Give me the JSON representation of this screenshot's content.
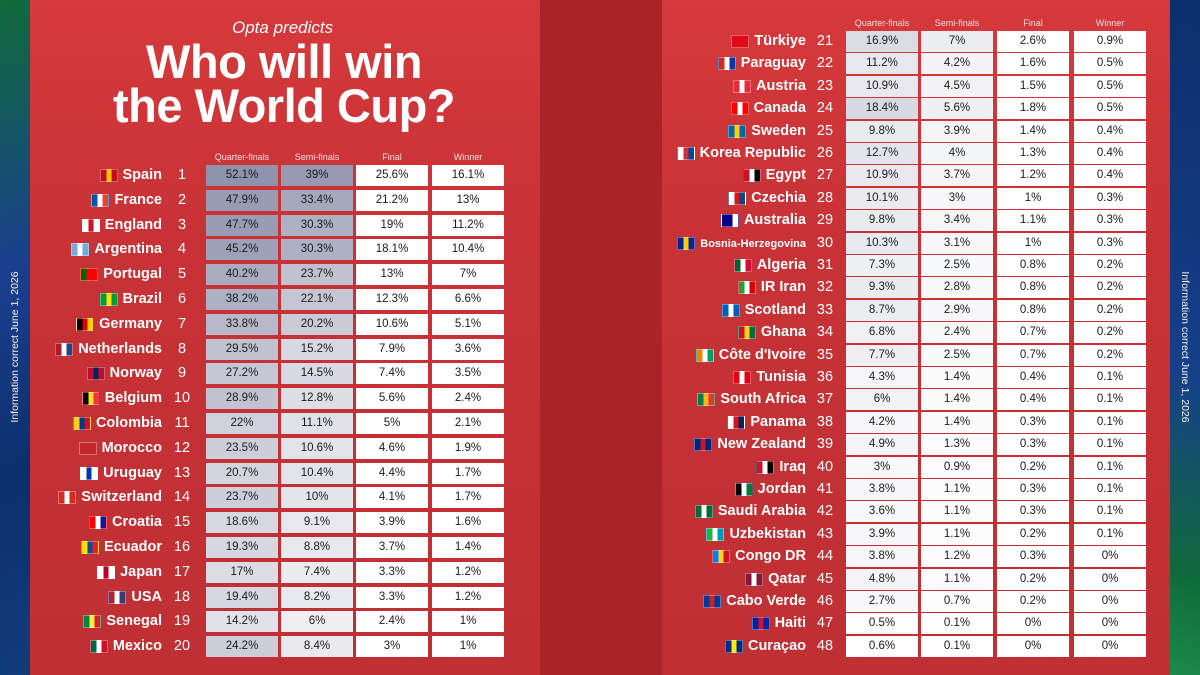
{
  "header": {
    "pre_title": "Opta predicts",
    "title_line1": "Who will win",
    "title_line2": "the World Cup?"
  },
  "side_note": "Information correct June 1, 2026",
  "chart_data": {
    "type": "table",
    "columns": [
      "Quarter-finals",
      "Semi-finals",
      "Final",
      "Winner"
    ],
    "rows": [
      {
        "rank": 1,
        "country": "Spain",
        "values": [
          "52.1%",
          "39%",
          "25.6%",
          "16.1%"
        ]
      },
      {
        "rank": 2,
        "country": "France",
        "values": [
          "47.9%",
          "33.4%",
          "21.2%",
          "13%"
        ]
      },
      {
        "rank": 3,
        "country": "England",
        "values": [
          "47.7%",
          "30.3%",
          "19%",
          "11.2%"
        ]
      },
      {
        "rank": 4,
        "country": "Argentina",
        "values": [
          "45.2%",
          "30.3%",
          "18.1%",
          "10.4%"
        ]
      },
      {
        "rank": 5,
        "country": "Portugal",
        "values": [
          "40.2%",
          "23.7%",
          "13%",
          "7%"
        ]
      },
      {
        "rank": 6,
        "country": "Brazil",
        "values": [
          "38.2%",
          "22.1%",
          "12.3%",
          "6.6%"
        ]
      },
      {
        "rank": 7,
        "country": "Germany",
        "values": [
          "33.8%",
          "20.2%",
          "10.6%",
          "5.1%"
        ]
      },
      {
        "rank": 8,
        "country": "Netherlands",
        "values": [
          "29.5%",
          "15.2%",
          "7.9%",
          "3.6%"
        ]
      },
      {
        "rank": 9,
        "country": "Norway",
        "values": [
          "27.2%",
          "14.5%",
          "7.4%",
          "3.5%"
        ]
      },
      {
        "rank": 10,
        "country": "Belgium",
        "values": [
          "28.9%",
          "12.8%",
          "5.6%",
          "2.4%"
        ]
      },
      {
        "rank": 11,
        "country": "Colombia",
        "values": [
          "22%",
          "11.1%",
          "5%",
          "2.1%"
        ]
      },
      {
        "rank": 12,
        "country": "Morocco",
        "values": [
          "23.5%",
          "10.6%",
          "4.6%",
          "1.9%"
        ]
      },
      {
        "rank": 13,
        "country": "Uruguay",
        "values": [
          "20.7%",
          "10.4%",
          "4.4%",
          "1.7%"
        ]
      },
      {
        "rank": 14,
        "country": "Switzerland",
        "values": [
          "23.7%",
          "10%",
          "4.1%",
          "1.7%"
        ]
      },
      {
        "rank": 15,
        "country": "Croatia",
        "values": [
          "18.6%",
          "9.1%",
          "3.9%",
          "1.6%"
        ]
      },
      {
        "rank": 16,
        "country": "Ecuador",
        "values": [
          "19.3%",
          "8.8%",
          "3.7%",
          "1.4%"
        ]
      },
      {
        "rank": 17,
        "country": "Japan",
        "values": [
          "17%",
          "7.4%",
          "3.3%",
          "1.2%"
        ]
      },
      {
        "rank": 18,
        "country": "USA",
        "values": [
          "19.4%",
          "8.2%",
          "3.3%",
          "1.2%"
        ]
      },
      {
        "rank": 19,
        "country": "Senegal",
        "values": [
          "14.2%",
          "6%",
          "2.4%",
          "1%"
        ]
      },
      {
        "rank": 20,
        "country": "Mexico",
        "values": [
          "24.2%",
          "8.4%",
          "3%",
          "1%"
        ]
      },
      {
        "rank": 21,
        "country": "Türkiye",
        "values": [
          "16.9%",
          "7%",
          "2.6%",
          "0.9%"
        ]
      },
      {
        "rank": 22,
        "country": "Paraguay",
        "values": [
          "11.2%",
          "4.2%",
          "1.6%",
          "0.5%"
        ]
      },
      {
        "rank": 23,
        "country": "Austria",
        "values": [
          "10.9%",
          "4.5%",
          "1.5%",
          "0.5%"
        ]
      },
      {
        "rank": 24,
        "country": "Canada",
        "values": [
          "18.4%",
          "5.6%",
          "1.8%",
          "0.5%"
        ]
      },
      {
        "rank": 25,
        "country": "Sweden",
        "values": [
          "9.8%",
          "3.9%",
          "1.4%",
          "0.4%"
        ]
      },
      {
        "rank": 26,
        "country": "Korea Republic",
        "values": [
          "12.7%",
          "4%",
          "1.3%",
          "0.4%"
        ]
      },
      {
        "rank": 27,
        "country": "Egypt",
        "values": [
          "10.9%",
          "3.7%",
          "1.2%",
          "0.4%"
        ]
      },
      {
        "rank": 28,
        "country": "Czechia",
        "values": [
          "10.1%",
          "3%",
          "1%",
          "0.3%"
        ]
      },
      {
        "rank": 29,
        "country": "Australia",
        "values": [
          "9.8%",
          "3.4%",
          "1.1%",
          "0.3%"
        ]
      },
      {
        "rank": 30,
        "country": "Bosnia-Herzegovina",
        "values": [
          "10.3%",
          "3.1%",
          "1%",
          "0.3%"
        ]
      },
      {
        "rank": 31,
        "country": "Algeria",
        "values": [
          "7.3%",
          "2.5%",
          "0.8%",
          "0.2%"
        ]
      },
      {
        "rank": 32,
        "country": "IR Iran",
        "values": [
          "9.3%",
          "2.8%",
          "0.8%",
          "0.2%"
        ]
      },
      {
        "rank": 33,
        "country": "Scotland",
        "values": [
          "8.7%",
          "2.9%",
          "0.8%",
          "0.2%"
        ]
      },
      {
        "rank": 34,
        "country": "Ghana",
        "values": [
          "6.8%",
          "2.4%",
          "0.7%",
          "0.2%"
        ]
      },
      {
        "rank": 35,
        "country": "Côte d'Ivoire",
        "values": [
          "7.7%",
          "2.5%",
          "0.7%",
          "0.2%"
        ]
      },
      {
        "rank": 36,
        "country": "Tunisia",
        "values": [
          "4.3%",
          "1.4%",
          "0.4%",
          "0.1%"
        ]
      },
      {
        "rank": 37,
        "country": "South Africa",
        "values": [
          "6%",
          "1.4%",
          "0.4%",
          "0.1%"
        ]
      },
      {
        "rank": 38,
        "country": "Panama",
        "values": [
          "4.2%",
          "1.4%",
          "0.3%",
          "0.1%"
        ]
      },
      {
        "rank": 39,
        "country": "New Zealand",
        "values": [
          "4.9%",
          "1.3%",
          "0.3%",
          "0.1%"
        ]
      },
      {
        "rank": 40,
        "country": "Iraq",
        "values": [
          "3%",
          "0.9%",
          "0.2%",
          "0.1%"
        ]
      },
      {
        "rank": 41,
        "country": "Jordan",
        "values": [
          "3.8%",
          "1.1%",
          "0.3%",
          "0.1%"
        ]
      },
      {
        "rank": 42,
        "country": "Saudi Arabia",
        "values": [
          "3.6%",
          "1.1%",
          "0.3%",
          "0.1%"
        ]
      },
      {
        "rank": 43,
        "country": "Uzbekistan",
        "values": [
          "3.9%",
          "1.1%",
          "0.2%",
          "0.1%"
        ]
      },
      {
        "rank": 44,
        "country": "Congo DR",
        "values": [
          "3.8%",
          "1.2%",
          "0.3%",
          "0%"
        ]
      },
      {
        "rank": 45,
        "country": "Qatar",
        "values": [
          "4.8%",
          "1.1%",
          "0.2%",
          "0%"
        ]
      },
      {
        "rank": 46,
        "country": "Cabo Verde",
        "values": [
          "2.7%",
          "0.7%",
          "0.2%",
          "0%"
        ]
      },
      {
        "rank": 47,
        "country": "Haiti",
        "values": [
          "0.5%",
          "0.1%",
          "0%",
          "0%"
        ]
      },
      {
        "rank": 48,
        "country": "Curaçao",
        "values": [
          "0.6%",
          "0.1%",
          "0%",
          "0%"
        ]
      }
    ]
  },
  "flags": [
    [
      "#c60b1e",
      "#ffc400",
      "#c60b1e"
    ],
    [
      "#0055a4",
      "#ffffff",
      "#ef4135"
    ],
    [
      "#ffffff",
      "#ce1124",
      "#ffffff"
    ],
    [
      "#75aadb",
      "#ffffff",
      "#75aadb"
    ],
    [
      "#006600",
      "#ff0000",
      "#ff0000"
    ],
    [
      "#009c3b",
      "#ffdf00",
      "#009c3b"
    ],
    [
      "#000000",
      "#dd0000",
      "#ffce00"
    ],
    [
      "#ae1c28",
      "#ffffff",
      "#21468b"
    ],
    [
      "#ba0c2f",
      "#00205b",
      "#ba0c2f"
    ],
    [
      "#000000",
      "#fdda24",
      "#ef3340"
    ],
    [
      "#fcd116",
      "#003893",
      "#ce1126"
    ],
    [
      "#c1272d",
      "#c1272d",
      "#c1272d"
    ],
    [
      "#ffffff",
      "#0038a8",
      "#ffffff"
    ],
    [
      "#d52b1e",
      "#ffffff",
      "#d52b1e"
    ],
    [
      "#ff0000",
      "#ffffff",
      "#171796"
    ],
    [
      "#ffdd00",
      "#034ea2",
      "#ed1c24"
    ],
    [
      "#ffffff",
      "#bc002d",
      "#ffffff"
    ],
    [
      "#b22234",
      "#ffffff",
      "#3c3b6e"
    ],
    [
      "#00853f",
      "#fdef42",
      "#e31b23"
    ],
    [
      "#006847",
      "#ffffff",
      "#ce1126"
    ],
    [
      "#e30a17",
      "#e30a17",
      "#e30a17"
    ],
    [
      "#d52b1e",
      "#ffffff",
      "#0038a8"
    ],
    [
      "#ed2939",
      "#ffffff",
      "#ed2939"
    ],
    [
      "#ff0000",
      "#ffffff",
      "#ff0000"
    ],
    [
      "#006aa7",
      "#fecc00",
      "#006aa7"
    ],
    [
      "#ffffff",
      "#cd2e3a",
      "#0047a0"
    ],
    [
      "#ce1126",
      "#ffffff",
      "#000000"
    ],
    [
      "#ffffff",
      "#d7141a",
      "#11457e"
    ],
    [
      "#00008b",
      "#00008b",
      "#ffffff"
    ],
    [
      "#002395",
      "#fecb00",
      "#002395"
    ],
    [
      "#006233",
      "#ffffff",
      "#d21034"
    ],
    [
      "#239f40",
      "#ffffff",
      "#da0000"
    ],
    [
      "#005eb8",
      "#ffffff",
      "#005eb8"
    ],
    [
      "#ce1126",
      "#fcd116",
      "#006b3f"
    ],
    [
      "#f77f00",
      "#ffffff",
      "#009e60"
    ],
    [
      "#e70013",
      "#ffffff",
      "#e70013"
    ],
    [
      "#007a4d",
      "#ffb612",
      "#de3831"
    ],
    [
      "#ffffff",
      "#da121a",
      "#072357"
    ],
    [
      "#00247d",
      "#cc142b",
      "#00247d"
    ],
    [
      "#ce1126",
      "#ffffff",
      "#000000"
    ],
    [
      "#000000",
      "#ffffff",
      "#007a3d"
    ],
    [
      "#006c35",
      "#ffffff",
      "#006c35"
    ],
    [
      "#1eb53a",
      "#ffffff",
      "#0099b5"
    ],
    [
      "#007fff",
      "#f7d618",
      "#ce1021"
    ],
    [
      "#8a1538",
      "#ffffff",
      "#8a1538"
    ],
    [
      "#003893",
      "#cf2027",
      "#003893"
    ],
    [
      "#00209f",
      "#d21034",
      "#00209f"
    ],
    [
      "#002b7f",
      "#f9e814",
      "#002b7f"
    ]
  ]
}
